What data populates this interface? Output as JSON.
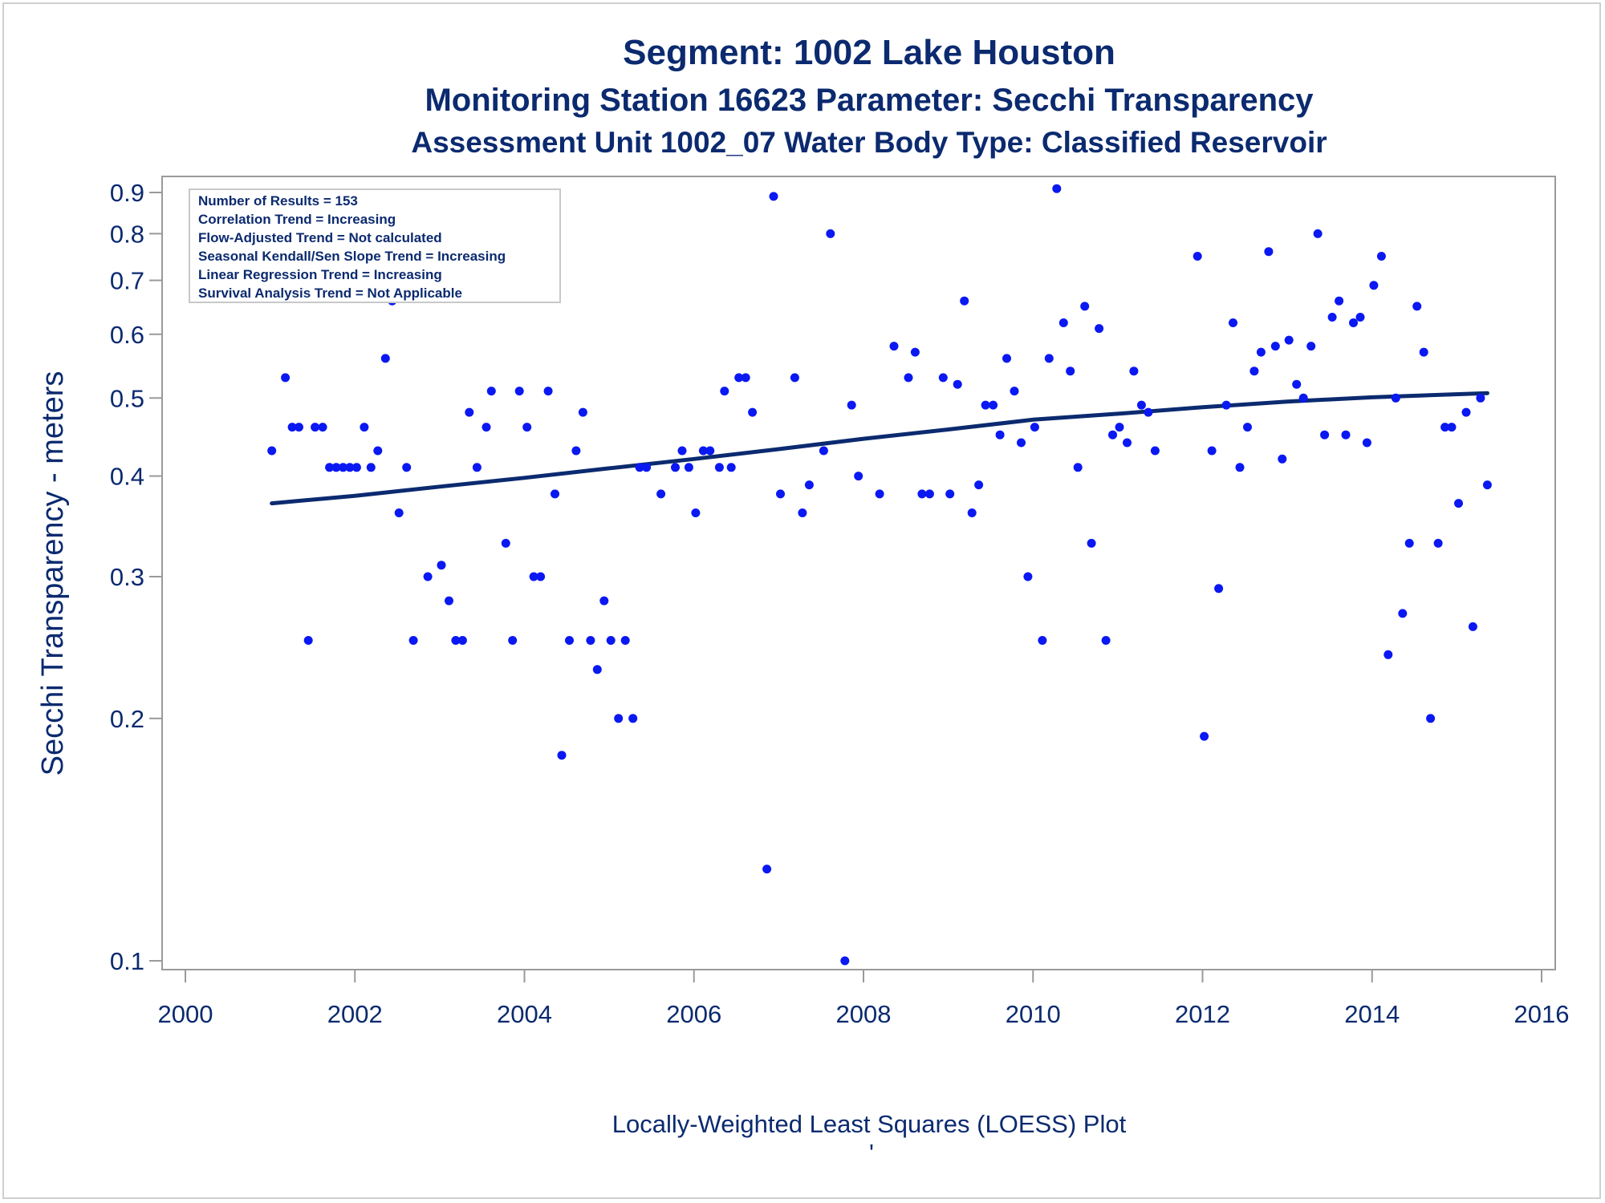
{
  "titles": [
    "Segment: 1002  Lake Houston",
    "Monitoring Station 16623 Parameter: Secchi Transparency",
    "Assessment Unit 1002_07   Water Body Type: Classified Reservoir"
  ],
  "stats_box": [
    "Number of Results = 153",
    "Correlation Trend = Increasing",
    "Flow-Adjusted Trend = Not calculated",
    "Seasonal Kendall/Sen Slope Trend = Increasing",
    "Linear Regression Trend = Increasing",
    "Survival Analysis Trend = Not Applicable"
  ],
  "footnote": "Locally-Weighted Least Squares (LOESS) Plot",
  "footnote_mark": "'",
  "colors": {
    "text": "#0b2a6f",
    "points": "#0a18f2",
    "line": "#0b2a6f",
    "axis": "#9a9a9a"
  },
  "chart_data": {
    "type": "scatter",
    "ylabel": "Secchi Transparency - meters",
    "xlabel": "",
    "y_scale": "log",
    "xlim": [
      2000,
      2016
    ],
    "ylim": [
      0.1,
      0.9
    ],
    "x_ticks": [
      2000,
      2002,
      2004,
      2006,
      2008,
      2010,
      2012,
      2014,
      2016
    ],
    "y_ticks": [
      0.1,
      0.2,
      0.3,
      0.4,
      0.5,
      0.6,
      0.7,
      0.8,
      0.9
    ],
    "grid": false,
    "series": [
      {
        "marker": "dot",
        "points": [
          [
            2001.02,
            0.43
          ],
          [
            2001.18,
            0.53
          ],
          [
            2001.26,
            0.46
          ],
          [
            2001.34,
            0.46
          ],
          [
            2001.45,
            0.25
          ],
          [
            2001.53,
            0.46
          ],
          [
            2001.62,
            0.46
          ],
          [
            2001.7,
            0.41
          ],
          [
            2001.78,
            0.41
          ],
          [
            2001.86,
            0.41
          ],
          [
            2001.94,
            0.41
          ],
          [
            2002.02,
            0.41
          ],
          [
            2002.11,
            0.46
          ],
          [
            2002.19,
            0.41
          ],
          [
            2002.27,
            0.43
          ],
          [
            2002.36,
            0.56
          ],
          [
            2002.44,
            0.66
          ],
          [
            2002.52,
            0.36
          ],
          [
            2002.61,
            0.41
          ],
          [
            2002.69,
            0.25
          ],
          [
            2002.86,
            0.3
          ],
          [
            2003.02,
            0.31
          ],
          [
            2003.11,
            0.28
          ],
          [
            2003.19,
            0.25
          ],
          [
            2003.27,
            0.25
          ],
          [
            2003.35,
            0.48
          ],
          [
            2003.44,
            0.41
          ],
          [
            2003.55,
            0.46
          ],
          [
            2003.61,
            0.51
          ],
          [
            2003.78,
            0.33
          ],
          [
            2003.86,
            0.25
          ],
          [
            2003.94,
            0.51
          ],
          [
            2004.03,
            0.46
          ],
          [
            2004.11,
            0.3
          ],
          [
            2004.19,
            0.3
          ],
          [
            2004.28,
            0.51
          ],
          [
            2004.36,
            0.38
          ],
          [
            2004.44,
            0.18
          ],
          [
            2004.53,
            0.25
          ],
          [
            2004.61,
            0.43
          ],
          [
            2004.69,
            0.48
          ],
          [
            2004.78,
            0.25
          ],
          [
            2004.86,
            0.23
          ],
          [
            2004.94,
            0.28
          ],
          [
            2005.02,
            0.25
          ],
          [
            2005.11,
            0.2
          ],
          [
            2005.19,
            0.25
          ],
          [
            2005.28,
            0.2
          ],
          [
            2005.36,
            0.41
          ],
          [
            2005.44,
            0.41
          ],
          [
            2005.61,
            0.38
          ],
          [
            2005.78,
            0.41
          ],
          [
            2005.86,
            0.43
          ],
          [
            2005.94,
            0.41
          ],
          [
            2006.02,
            0.36
          ],
          [
            2006.11,
            0.43
          ],
          [
            2006.19,
            0.43
          ],
          [
            2006.3,
            0.41
          ],
          [
            2006.36,
            0.51
          ],
          [
            2006.44,
            0.41
          ],
          [
            2006.53,
            0.53
          ],
          [
            2006.61,
            0.53
          ],
          [
            2006.69,
            0.48
          ],
          [
            2006.86,
            0.13
          ],
          [
            2006.94,
            0.89
          ],
          [
            2007.02,
            0.38
          ],
          [
            2007.19,
            0.53
          ],
          [
            2007.28,
            0.36
          ],
          [
            2007.36,
            0.39
          ],
          [
            2007.53,
            0.43
          ],
          [
            2007.61,
            0.8
          ],
          [
            2007.78,
            0.1
          ],
          [
            2007.86,
            0.49
          ],
          [
            2007.94,
            0.4
          ],
          [
            2008.19,
            0.38
          ],
          [
            2008.36,
            0.58
          ],
          [
            2008.53,
            0.53
          ],
          [
            2008.61,
            0.57
          ],
          [
            2008.69,
            0.38
          ],
          [
            2008.78,
            0.38
          ],
          [
            2008.94,
            0.53
          ],
          [
            2009.02,
            0.38
          ],
          [
            2009.11,
            0.52
          ],
          [
            2009.19,
            0.66
          ],
          [
            2009.28,
            0.36
          ],
          [
            2009.36,
            0.39
          ],
          [
            2009.44,
            0.49
          ],
          [
            2009.53,
            0.49
          ],
          [
            2009.61,
            0.45
          ],
          [
            2009.69,
            0.56
          ],
          [
            2009.78,
            0.51
          ],
          [
            2009.86,
            0.44
          ],
          [
            2009.94,
            0.3
          ],
          [
            2010.02,
            0.46
          ],
          [
            2010.11,
            0.25
          ],
          [
            2010.19,
            0.56
          ],
          [
            2010.28,
            0.91
          ],
          [
            2010.36,
            0.62
          ],
          [
            2010.44,
            0.54
          ],
          [
            2010.53,
            0.41
          ],
          [
            2010.61,
            0.65
          ],
          [
            2010.69,
            0.33
          ],
          [
            2010.78,
            0.61
          ],
          [
            2010.86,
            0.25
          ],
          [
            2010.94,
            0.45
          ],
          [
            2011.02,
            0.46
          ],
          [
            2011.11,
            0.44
          ],
          [
            2011.19,
            0.54
          ],
          [
            2011.28,
            0.49
          ],
          [
            2011.36,
            0.48
          ],
          [
            2011.44,
            0.43
          ],
          [
            2011.94,
            0.75
          ],
          [
            2012.02,
            0.19
          ],
          [
            2012.11,
            0.43
          ],
          [
            2012.19,
            0.29
          ],
          [
            2012.28,
            0.49
          ],
          [
            2012.36,
            0.62
          ],
          [
            2012.44,
            0.41
          ],
          [
            2012.53,
            0.46
          ],
          [
            2012.61,
            0.54
          ],
          [
            2012.69,
            0.57
          ],
          [
            2012.78,
            0.76
          ],
          [
            2012.86,
            0.58
          ],
          [
            2012.94,
            0.42
          ],
          [
            2013.02,
            0.59
          ],
          [
            2013.11,
            0.52
          ],
          [
            2013.19,
            0.5
          ],
          [
            2013.28,
            0.58
          ],
          [
            2013.36,
            0.8
          ],
          [
            2013.44,
            0.45
          ],
          [
            2013.53,
            0.63
          ],
          [
            2013.61,
            0.66
          ],
          [
            2013.69,
            0.45
          ],
          [
            2013.78,
            0.62
          ],
          [
            2013.86,
            0.63
          ],
          [
            2013.94,
            0.44
          ],
          [
            2014.02,
            0.69
          ],
          [
            2014.11,
            0.75
          ],
          [
            2014.19,
            0.24
          ],
          [
            2014.28,
            0.5
          ],
          [
            2014.36,
            0.27
          ],
          [
            2014.44,
            0.33
          ],
          [
            2014.53,
            0.65
          ],
          [
            2014.61,
            0.57
          ],
          [
            2014.69,
            0.2
          ],
          [
            2014.78,
            0.33
          ],
          [
            2014.86,
            0.46
          ],
          [
            2014.94,
            0.46
          ],
          [
            2015.02,
            0.37
          ],
          [
            2015.11,
            0.48
          ],
          [
            2015.19,
            0.26
          ],
          [
            2015.28,
            0.5
          ],
          [
            2015.36,
            0.39
          ]
        ]
      }
    ],
    "trend_line": [
      [
        2001.02,
        0.37
      ],
      [
        2002.0,
        0.378
      ],
      [
        2003.0,
        0.388
      ],
      [
        2004.0,
        0.398
      ],
      [
        2005.0,
        0.409
      ],
      [
        2006.0,
        0.42
      ],
      [
        2007.0,
        0.432
      ],
      [
        2008.0,
        0.445
      ],
      [
        2009.0,
        0.457
      ],
      [
        2010.0,
        0.47
      ],
      [
        2011.0,
        0.478
      ],
      [
        2012.0,
        0.487
      ],
      [
        2013.0,
        0.495
      ],
      [
        2014.0,
        0.501
      ],
      [
        2015.36,
        0.507
      ]
    ]
  }
}
